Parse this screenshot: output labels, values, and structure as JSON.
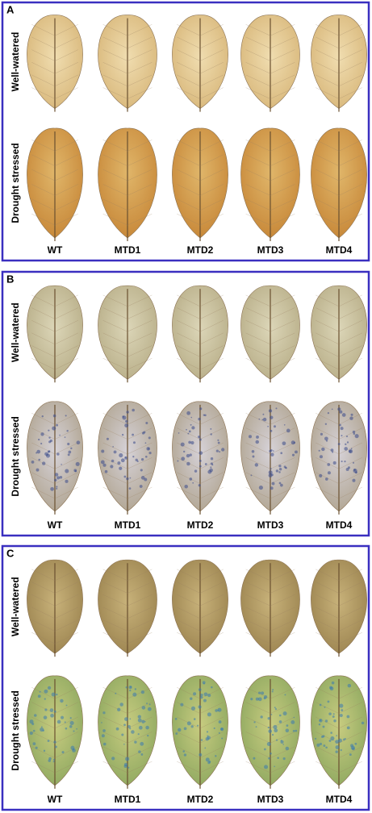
{
  "panels": [
    {
      "label": "A",
      "rows": [
        "Well-watered",
        "Drought stressed"
      ],
      "columns": [
        "WT",
        "MTD1",
        "MTD2",
        "MTD3",
        "MTD4"
      ]
    },
    {
      "label": "B",
      "rows": [
        "Well-watered",
        "Drought stressed"
      ],
      "columns": [
        "WT",
        "MTD1",
        "MTD2",
        "MTD3",
        "MTD4"
      ]
    },
    {
      "label": "C",
      "rows": [
        "Well-watered",
        "Drought stressed"
      ],
      "columns": [
        "WT",
        "MTD1",
        "MTD2",
        "MTD3",
        "MTD4"
      ]
    }
  ]
}
